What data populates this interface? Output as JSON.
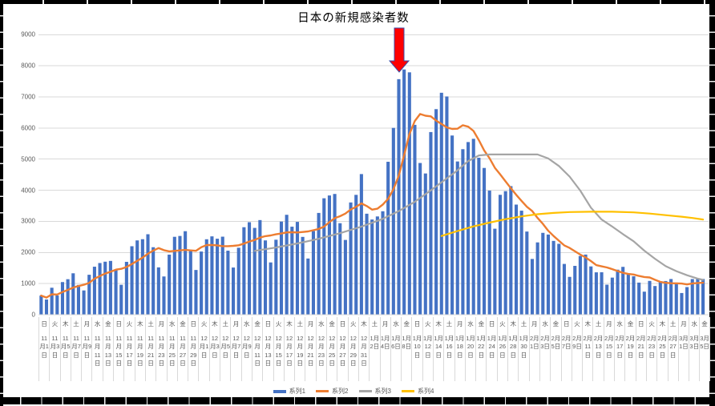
{
  "chart_data": {
    "type": "combo_bar_line",
    "title": "日本の新規感染者数",
    "text_color": "#595959",
    "gridline_color": "#D9D9D9",
    "y_axis": {
      "min": 0,
      "max": 9000,
      "tick_interval": 1000,
      "tick_labels": [
        "0",
        "1000",
        "2000",
        "3000",
        "4000",
        "5000",
        "6000",
        "7000",
        "8000",
        "9000"
      ]
    },
    "x_axis": {
      "label_interval_days": 2,
      "dow_names": [
        "日",
        "月",
        "火",
        "水",
        "木",
        "金",
        "土"
      ],
      "start_dow": "日",
      "month_suffix": "月",
      "day_suffix": "日",
      "months": [
        {
          "month": 11,
          "days": 30
        },
        {
          "month": 12,
          "days": 31
        },
        {
          "month": 1,
          "days": 31
        },
        {
          "month": 2,
          "days": 28
        },
        {
          "month": 3,
          "days": 5
        }
      ],
      "first_label": "日 11月1日",
      "last_label": "金 3月5日"
    },
    "series": [
      {
        "name": "系列1",
        "type": "bar",
        "color": "#4472C4",
        "values": [
          614,
          489,
          867,
          620,
          1049,
          1141,
          1331,
          957,
          780,
          1284,
          1543,
          1661,
          1704,
          1729,
          1440,
          962,
          1699,
          2201,
          2388,
          2427,
          2586,
          2169,
          1521,
          1229,
          1931,
          2504,
          2531,
          2684,
          2066,
          1438,
          2030,
          2425,
          2518,
          2442,
          2508,
          2058,
          1516,
          2152,
          2812,
          2973,
          2790,
          3041,
          2388,
          1680,
          2410,
          2994,
          3211,
          2829,
          2983,
          2501,
          1806,
          2688,
          3271,
          3742,
          3832,
          3881,
          2941,
          2403,
          3608,
          3852,
          4520,
          3246,
          3059,
          3158,
          3325,
          4915,
          6004,
          7570,
          7882,
          7790,
          6102,
          4876,
          4539,
          5870,
          6607,
          7133,
          7014,
          5759,
          4925,
          5320,
          5549,
          5653,
          5045,
          4717,
          3988,
          2764,
          3853,
          3971,
          4133,
          3539,
          3344,
          2673,
          1792,
          2324,
          2631,
          2577,
          2372,
          2279,
          1632,
          1216,
          1570,
          1887,
          1933,
          1552,
          1362,
          1364,
          965,
          1193,
          1448,
          1538,
          1301,
          1234,
          1032,
          741,
          1086,
          922,
          1076,
          1083,
          1147,
          999,
          697,
          888,
          1146,
          1169,
          1150
        ]
      },
      {
        "name": "系列2",
        "type": "line",
        "color": "#ED7D31",
        "derived_from": "7-day moving average of 系列1"
      },
      {
        "name": "系列3",
        "type": "line",
        "color": "#A5A5A5",
        "points": [
          [
            40,
            2050
          ],
          [
            44,
            2160
          ],
          [
            48,
            2290
          ],
          [
            52,
            2440
          ],
          [
            56,
            2620
          ],
          [
            60,
            2830
          ],
          [
            64,
            3080
          ],
          [
            67,
            3330
          ],
          [
            70,
            3630
          ],
          [
            73,
            4000
          ],
          [
            76,
            4380
          ],
          [
            78,
            4640
          ],
          [
            80,
            4940
          ],
          [
            82,
            5120
          ],
          [
            84,
            5150
          ],
          [
            93,
            5150
          ],
          [
            95,
            5020
          ],
          [
            97,
            4780
          ],
          [
            99,
            4440
          ],
          [
            101,
            3990
          ],
          [
            103,
            3440
          ],
          [
            105,
            3060
          ],
          [
            107,
            2830
          ],
          [
            109,
            2590
          ],
          [
            111,
            2360
          ],
          [
            113,
            2060
          ],
          [
            115,
            1800
          ],
          [
            117,
            1560
          ],
          [
            119,
            1400
          ],
          [
            121,
            1270
          ],
          [
            123,
            1160
          ],
          [
            124,
            1120
          ]
        ]
      },
      {
        "name": "系列4",
        "type": "line",
        "color": "#FFC000",
        "points": [
          [
            75,
            2530
          ],
          [
            78,
            2690
          ],
          [
            81,
            2840
          ],
          [
            84,
            2960
          ],
          [
            87,
            3070
          ],
          [
            90,
            3160
          ],
          [
            93,
            3230
          ],
          [
            96,
            3270
          ],
          [
            99,
            3300
          ],
          [
            103,
            3310
          ],
          [
            107,
            3310
          ],
          [
            111,
            3290
          ],
          [
            114,
            3250
          ],
          [
            117,
            3200
          ],
          [
            120,
            3150
          ],
          [
            122,
            3110
          ],
          [
            124,
            3060
          ]
        ]
      }
    ],
    "annotation": {
      "shape": "block-arrow-down",
      "fill": "#FF0000",
      "outline": "#3B4CA8",
      "points_at": "1月8日"
    },
    "legend": {
      "position": "bottom",
      "entries": [
        "系列1",
        "系列2",
        "系列3",
        "系列4"
      ]
    }
  }
}
